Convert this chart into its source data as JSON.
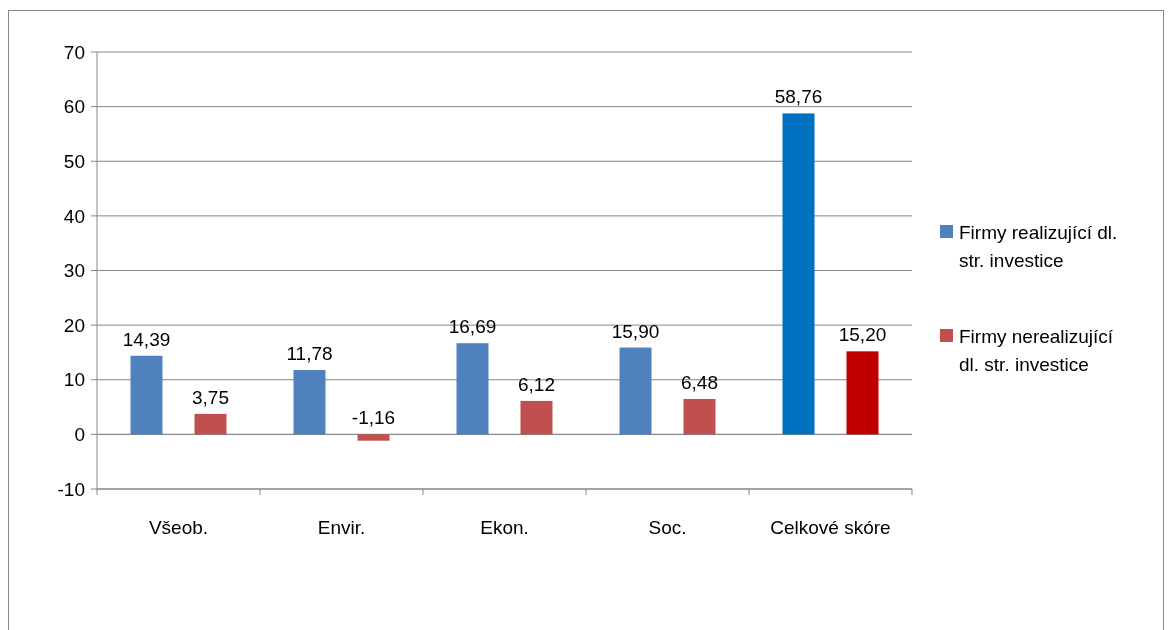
{
  "chart_data": {
    "type": "bar",
    "categories": [
      "Všeob.",
      "Envir.",
      "Ekon.",
      "Soc.",
      "Celkové skóre"
    ],
    "series": [
      {
        "name": "Firmy realizující dl. str. investice",
        "color": "#4f81bd",
        "colors": [
          "#4f81bd",
          "#4f81bd",
          "#4f81bd",
          "#4f81bd",
          "#0070c0"
        ],
        "values": [
          14.39,
          11.78,
          16.69,
          15.9,
          58.76
        ],
        "value_labels": [
          "14,39",
          "11,78",
          "16,69",
          "15,90",
          "58,76"
        ]
      },
      {
        "name": "Firmy nerealizující dl. str. investice",
        "color": "#c0504d",
        "colors": [
          "#c0504d",
          "#c0504d",
          "#c0504d",
          "#c0504d",
          "#c00000"
        ],
        "values": [
          3.75,
          -1.16,
          6.12,
          6.48,
          15.2
        ],
        "value_labels": [
          "3,75",
          "-1,16",
          "6,12",
          "6,48",
          "15,20"
        ]
      }
    ],
    "ylim": [
      -10,
      70
    ],
    "yticks": [
      -10,
      0,
      10,
      20,
      30,
      40,
      50,
      60,
      70
    ],
    "grid": "y",
    "legend": "right"
  }
}
